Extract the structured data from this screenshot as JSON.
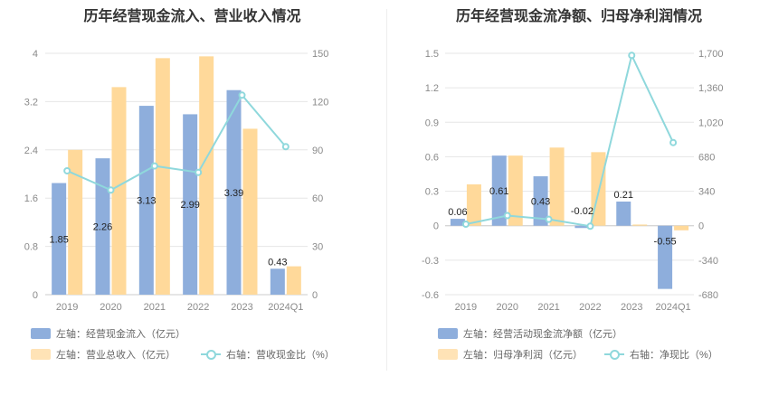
{
  "colors": {
    "blue": "#8eaedc",
    "orange": "#ffd99a",
    "line": "#8fd8dc",
    "grid": "#e6e6e6"
  },
  "left": {
    "title": "历年经营现金流入、营业收入情况",
    "legend": {
      "bar1": "左轴：经营现金流入（亿元）",
      "bar2": "左轴：营业总收入（亿元）",
      "line": "右轴：营收现金比（%）"
    }
  },
  "right": {
    "title": "历年经营现金流净额、归母净利润情况",
    "legend": {
      "bar1": "左轴：经营活动现金流净额（亿元）",
      "bar2": "左轴：归母净利润（亿元）",
      "line": "右轴：净现比（%）"
    }
  },
  "chart_data": [
    {
      "type": "bar",
      "title": "历年经营现金流入、营业收入情况",
      "categories": [
        "2019",
        "2020",
        "2021",
        "2022",
        "2023",
        "2024Q1"
      ],
      "left_axis": {
        "ylim": [
          0,
          4
        ],
        "ticks": [
          "0",
          "0.8",
          "1.6",
          "2.4",
          "3.2",
          "4"
        ]
      },
      "right_axis": {
        "ylim": [
          0,
          150
        ],
        "ticks": [
          "0",
          "30",
          "60",
          "90",
          "120",
          "150"
        ]
      },
      "series": [
        {
          "name": "左轴：经营现金流入（亿元）",
          "axis": "left",
          "kind": "bar",
          "values": [
            1.85,
            2.26,
            3.13,
            2.99,
            3.39,
            0.43
          ],
          "labels": [
            "1.85",
            "2.26",
            "3.13",
            "2.99",
            "3.39",
            "0.43"
          ]
        },
        {
          "name": "左轴：营业总收入（亿元）",
          "axis": "left",
          "kind": "bar",
          "values": [
            2.4,
            3.44,
            3.92,
            3.95,
            2.75,
            0.47
          ]
        },
        {
          "name": "右轴：营收现金比（%）",
          "axis": "right",
          "kind": "line",
          "values": [
            77,
            65,
            80,
            76,
            124,
            92
          ]
        }
      ],
      "grid": true
    },
    {
      "type": "bar",
      "title": "历年经营现金流净额、归母净利润情况",
      "categories": [
        "2019",
        "2020",
        "2021",
        "2022",
        "2023",
        "2024Q1"
      ],
      "left_axis": {
        "ylim": [
          -0.6,
          1.5
        ],
        "ticks": [
          "-0.6",
          "-0.3",
          "0",
          "0.3",
          "0.6",
          "0.9",
          "1.2",
          "1.5"
        ]
      },
      "right_axis": {
        "ylim": [
          -680,
          1700
        ],
        "ticks": [
          "-680",
          "-340",
          "0",
          "340",
          "680",
          "1,020",
          "1,360",
          "1,700"
        ]
      },
      "series": [
        {
          "name": "左轴：经营活动现金流净额（亿元）",
          "axis": "left",
          "kind": "bar",
          "values": [
            0.06,
            0.61,
            0.43,
            -0.02,
            0.21,
            -0.55
          ],
          "labels": [
            "0.06",
            "0.61",
            "0.43",
            "-0.02",
            "0.21",
            "-0.55"
          ]
        },
        {
          "name": "左轴：归母净利润（亿元）",
          "axis": "left",
          "kind": "bar",
          "values": [
            0.36,
            0.61,
            0.68,
            0.64,
            0.01,
            -0.04
          ]
        },
        {
          "name": "右轴：净现比（%）",
          "axis": "right",
          "kind": "line",
          "values": [
            15,
            100,
            63,
            -5,
            1680,
            820
          ]
        }
      ],
      "grid": true
    }
  ]
}
